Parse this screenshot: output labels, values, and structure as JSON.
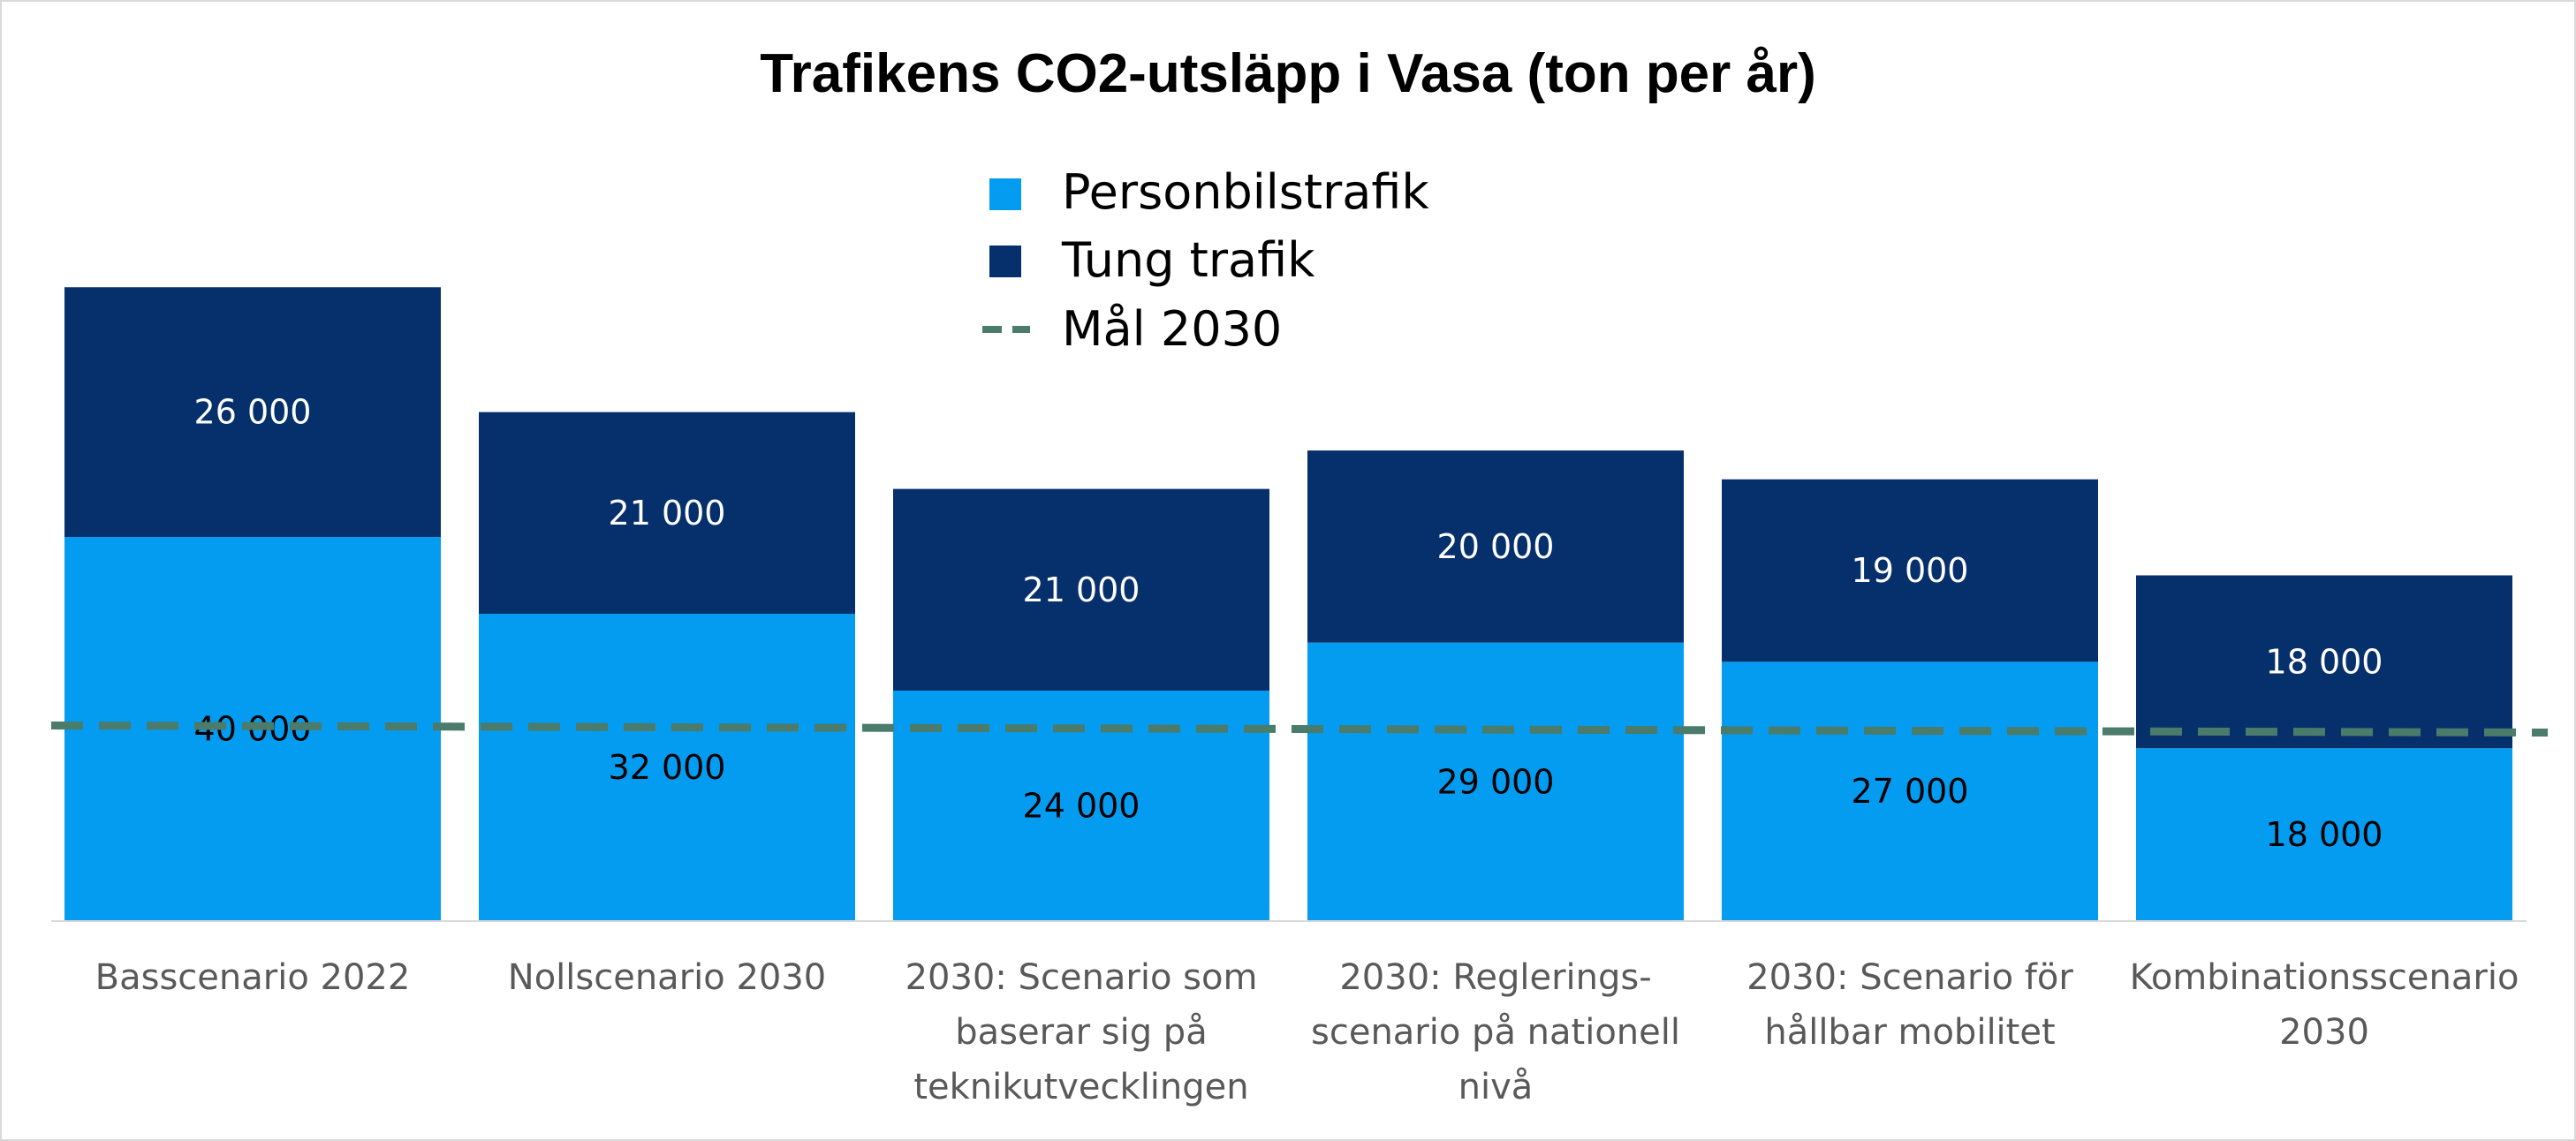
{
  "chart_data": {
    "type": "bar",
    "stacked": true,
    "title": "Trafikens CO2-utsläpp i Vasa (ton per år)",
    "xlabel": "",
    "ylabel": "",
    "ylim": [
      0,
      70000
    ],
    "grid": false,
    "legend_position": "top-center",
    "categories": [
      [
        "Basscenario 2022"
      ],
      [
        "Nollscenario 2030"
      ],
      [
        "2030: Scenario som",
        "baserar sig på",
        "teknikutvecklingen"
      ],
      [
        "2030: Reglerings-",
        "scenario på nationell",
        "nivå"
      ],
      [
        "2030: Scenario för",
        "hållbar mobilitet"
      ],
      [
        "Kombinationsscenario",
        "2030"
      ]
    ],
    "series": [
      {
        "name": "Personbilstrafik",
        "color": "#049cf0",
        "label_color": "#000000",
        "values": [
          40000,
          32000,
          24000,
          29000,
          27000,
          18000
        ],
        "labels": [
          "40 000",
          "32 000",
          "24 000",
          "29 000",
          "27 000",
          "18 000"
        ]
      },
      {
        "name": "Tung trafik",
        "color": "#06306c",
        "label_color": "#ffffff",
        "values": [
          26000,
          21000,
          21000,
          20000,
          19000,
          18000
        ],
        "labels": [
          "26 000",
          "21 000",
          "21 000",
          "20 000",
          "19 000",
          "18 000"
        ]
      }
    ],
    "target_line": {
      "name": "Mål 2030",
      "value": 20000,
      "color": "#4a7b6b",
      "style": "dashed"
    }
  }
}
